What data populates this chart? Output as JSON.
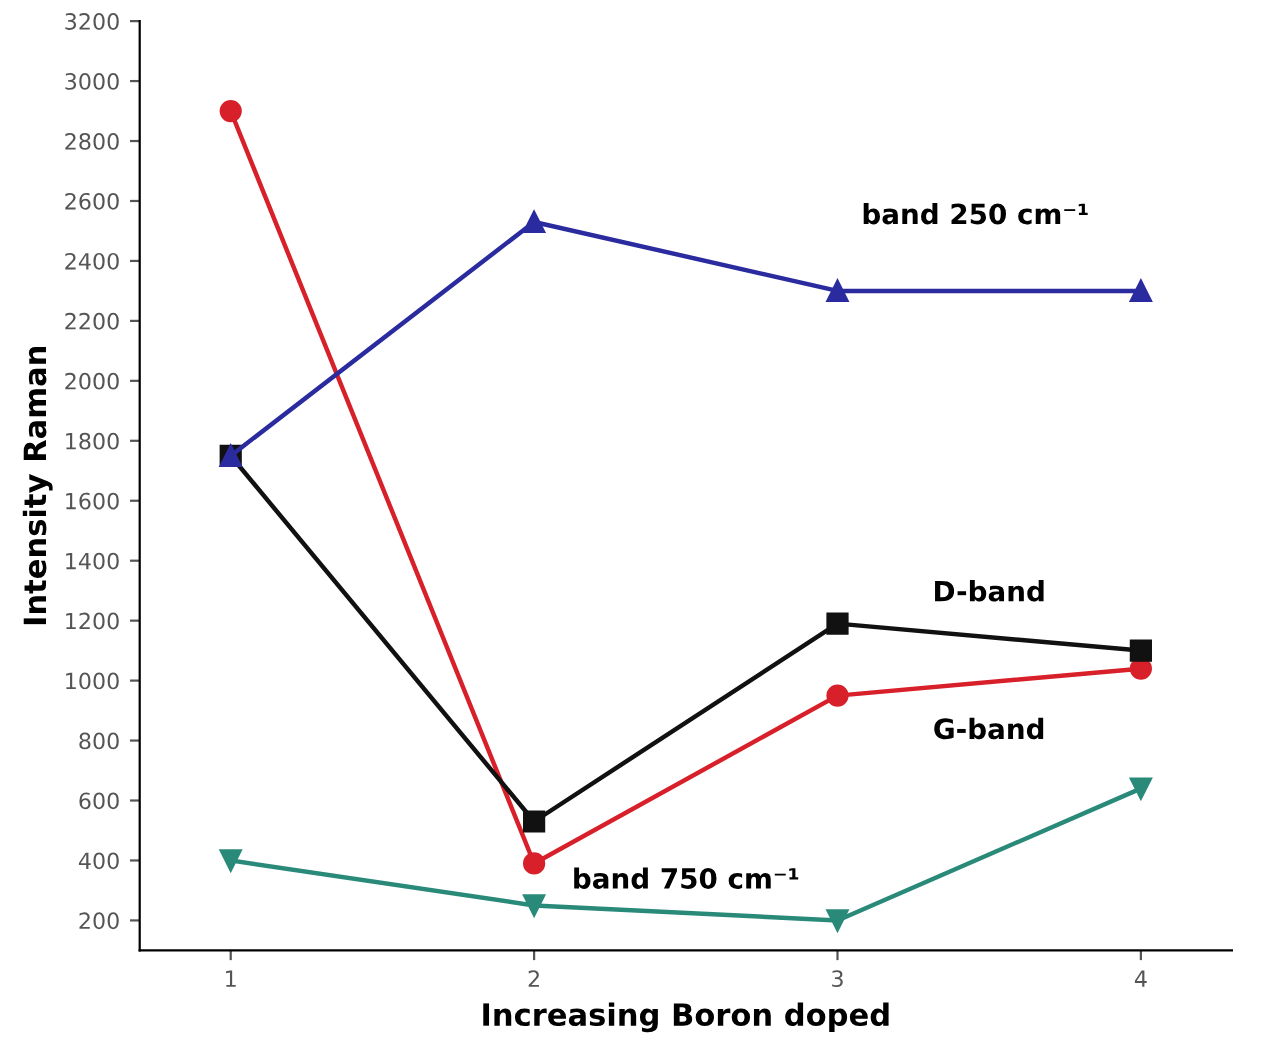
{
  "chart_data": {
    "type": "line",
    "xlabel": "Increasing Boron doped",
    "ylabel": "Intensity Raman",
    "x": [
      1,
      2,
      3,
      4
    ],
    "xlim": [
      0.7,
      4.3
    ],
    "xticks": [
      1,
      2,
      3,
      4
    ],
    "ylim": [
      100,
      3200
    ],
    "yticks": [
      200,
      400,
      600,
      800,
      1000,
      1200,
      1400,
      1600,
      1800,
      2000,
      2200,
      2400,
      2600,
      2800,
      3000,
      3200
    ],
    "grid": false,
    "legend": false,
    "series": [
      {
        "name": "band 250 cm⁻¹",
        "color": "#2b2ba0",
        "marker": "triangle",
        "values": [
          1750,
          2530,
          2300,
          2300
        ]
      },
      {
        "name": "D-band",
        "color": "#111111",
        "marker": "square",
        "values": [
          1750,
          530,
          1190,
          1100
        ]
      },
      {
        "name": "G-band",
        "color": "#d8202a",
        "marker": "circle",
        "values": [
          2900,
          390,
          950,
          1040
        ]
      },
      {
        "name": "band 750 cm⁻¹",
        "color": "#2a8a7a",
        "marker": "triangle_down",
        "values": [
          400,
          250,
          200,
          640
        ]
      }
    ]
  }
}
